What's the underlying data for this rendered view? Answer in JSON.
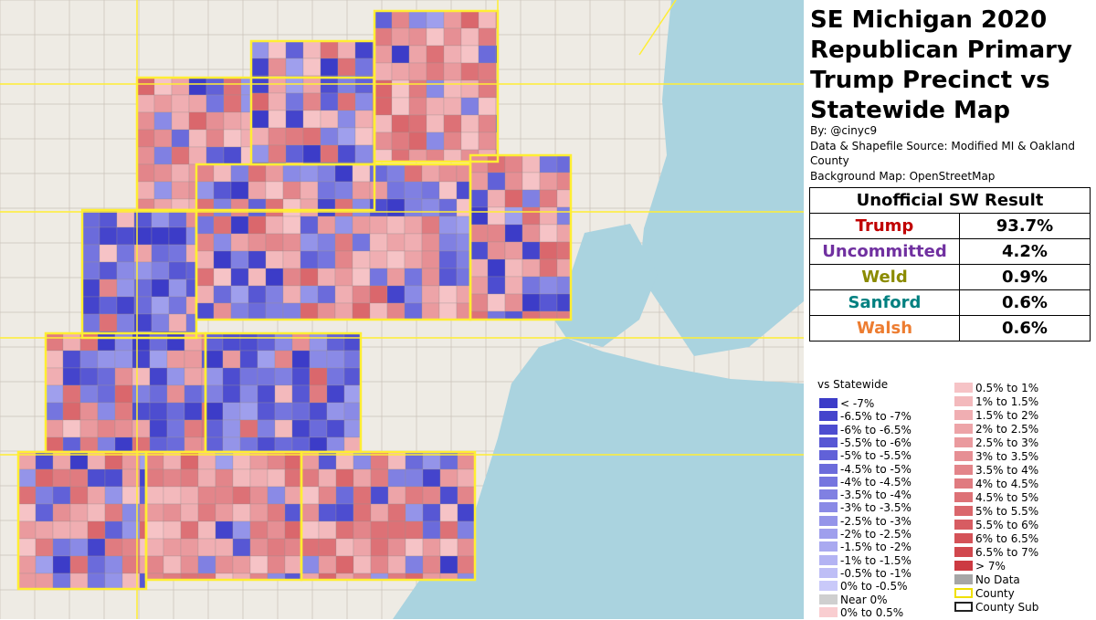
{
  "title": [
    "SE Michigan 2020",
    "Republican Primary",
    "Trump Precinct vs",
    "Statewide Map"
  ],
  "byline": "By: @cinyc9",
  "source": [
    "Data & Shapefile Source: Modified MI & Oakland",
    "County"
  ],
  "background": "Background Map: OpenStreetMap",
  "results": {
    "header": "Unofficial SW Result",
    "rows": [
      {
        "name": "Trump",
        "value": "93.7%",
        "color": "#c00000"
      },
      {
        "name": "Uncommitted",
        "value": "4.2%",
        "color": "#7030a0"
      },
      {
        "name": "Weld",
        "value": "0.9%",
        "color": "#8b8b00"
      },
      {
        "name": "Sanford",
        "value": "0.6%",
        "color": "#008080"
      },
      {
        "name": "Walsh",
        "value": "0.6%",
        "color": "#ed7d31"
      }
    ]
  },
  "legend": {
    "title": "vs Statewide",
    "left": [
      {
        "label": "< -7%",
        "color": "#3c3cc8"
      },
      {
        "label": "-6.5% to -7%",
        "color": "#4444cc"
      },
      {
        "label": "-6% to -6.5%",
        "color": "#4d4dd0"
      },
      {
        "label": "-5.5% to -6%",
        "color": "#5757d4"
      },
      {
        "label": "-5% to -5.5%",
        "color": "#6161d8"
      },
      {
        "label": "-4.5% to -5%",
        "color": "#6b6bdb"
      },
      {
        "label": "-4% to -4.5%",
        "color": "#7575df"
      },
      {
        "label": "-3.5% to -4%",
        "color": "#8080e2"
      },
      {
        "label": "-3% to -3.5%",
        "color": "#8a8ae6"
      },
      {
        "label": "-2.5% to -3%",
        "color": "#9494e9"
      },
      {
        "label": "-2% to -2.5%",
        "color": "#9f9fed"
      },
      {
        "label": "-1.5% to -2%",
        "color": "#a9a9f0"
      },
      {
        "label": "-1% to -1.5%",
        "color": "#b3b3f3"
      },
      {
        "label": "-0.5% to -1%",
        "color": "#bebef6"
      },
      {
        "label": "0% to -0.5%",
        "color": "#c9c9f9"
      },
      {
        "label": "Near 0%",
        "color": "#cfcfcf"
      },
      {
        "label": "0% to 0.5%",
        "color": "#f9cdd0"
      }
    ],
    "right": [
      {
        "label": "0.5% to 1%",
        "color": "#f6c3c6"
      },
      {
        "label": "1% to 1.5%",
        "color": "#f3b9bc"
      },
      {
        "label": "1.5% to 2%",
        "color": "#f0aeb2"
      },
      {
        "label": "2% to 2.5%",
        "color": "#eda4a8"
      },
      {
        "label": "2.5% to 3%",
        "color": "#ea9a9e"
      },
      {
        "label": "3% to 3.5%",
        "color": "#e68f94"
      },
      {
        "label": "3.5% to 4%",
        "color": "#e3858a"
      },
      {
        "label": "4% to 4.5%",
        "color": "#e07b80"
      },
      {
        "label": "4.5% to 5%",
        "color": "#dd7176"
      },
      {
        "label": "5% to 5.5%",
        "color": "#da676c"
      },
      {
        "label": "5.5% to 6%",
        "color": "#d75c62"
      },
      {
        "label": "6% to 6.5%",
        "color": "#d45258"
      },
      {
        "label": "6.5% to 7%",
        "color": "#d1484e"
      },
      {
        "label": "> 7%",
        "color": "#cc3a42"
      },
      {
        "label": "No Data",
        "color": "#a6a6a6"
      },
      {
        "label": "County",
        "color": "#ffffff",
        "stroke": "#f0e000"
      },
      {
        "label": "County Sub",
        "color": "#ffffff",
        "stroke": "#222222"
      }
    ]
  }
}
